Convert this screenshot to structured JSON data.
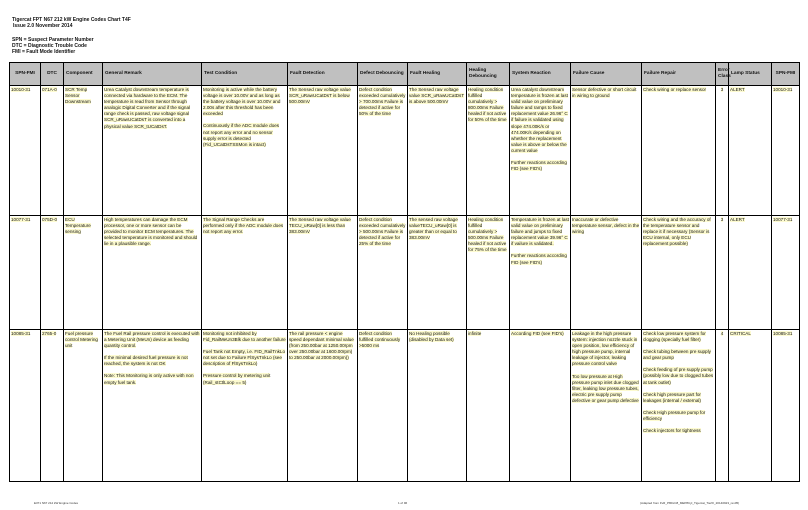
{
  "header": {
    "title": "Tigercat FPT N67 212 kW Engine Codes Chart T4F",
    "issue": "Issue 2.0 November 2014",
    "legend": [
      "SPN = Suspect Parameter Number",
      "DTC = Diagnostic Trouble Code",
      "FMI = Fault Mode Identifier"
    ]
  },
  "table": {
    "columns": [
      "SPN-FMI",
      "DTC",
      "Component",
      "General Remark",
      "Test Condition",
      "Fault Detection",
      "Defect Debouncing",
      "Fault Healing",
      "Healing Debouncing",
      "System Reaction",
      "Failure Cause",
      "Failure Repair",
      "Error Class",
      "Lamp Status",
      "SPN-FMI"
    ],
    "rows": [
      {
        "spn_fmi": "10010-31",
        "dtc": "071A-0",
        "component": "SCR Temp Sensor Downstream",
        "general_remark": [
          "Urea Catalyst downstream temperature is connected via  hardware to the ECM. The temperature is read from Sensor through analogic Digital Converter and if the signal range check is passed, raw voltage signal SCR_uRawUCatDsT is converted into a  physical value SCR_tUCatDsT."
        ],
        "test_condition": [
          "Monitoring is active while the battery voltage is over 10.00V and as long as the battery voltage is over 10.00V and 2.00s after this threshold has been exceeded",
          "Continuously  if the ADC module does not report any error and no sensor supply error is detected (Fid_UCatDsTSSMon is intact)"
        ],
        "fault_detection": [
          "The Sensed raw voltage value SCR_uRawUCatDsT is below 500.00mV"
        ],
        "defect_debouncing": [
          "Defect condition exceeded cumulatively > 700.00ms Failure is detected if active for 50% of the time"
        ],
        "fault_healing": [
          "The Sensed raw voltage value SCR_uRawUCatDsT is above 500.00mV"
        ],
        "healing_debouncing": [
          "Healing condition fulfilled cumulatively > 800.00ms Failure healed if not active for 50% of the time"
        ],
        "system_reaction": [
          "Urea catalyst downstream temperature is frozen at last valid value on preliminary failure and ramps to fixed replacement value 26.96° C if failure is validated using slope 474.00K/s or 474.00K/s depending on whether the replacement value is above or below the current value",
          "Further reactions according FID (see FID's)"
        ],
        "failure_cause": [
          "Sensor defective or short circuit in wiring to ground"
        ],
        "failure_repair": [
          "Check wiring or replace sensor"
        ],
        "error_class": "3",
        "lamp_status": "ALERT",
        "spn_fmi_2": "10010-31"
      },
      {
        "spn_fmi": "10077-31",
        "dtc": "075D-0",
        "component": "ECU Temperature sensing",
        "general_remark": [
          "High temperatures can damage the ECM processor, one or more sensor can be provided to monitor ECM temperatures. The selected temperature is monitored and should lie in a plausible range."
        ],
        "test_condition": [
          "The Signal Range Checks are performed only if the ADC module does not report any error."
        ],
        "fault_detection": [
          "The Sensed raw voltage value TECU_uRaw[0] is less than 383.00mV"
        ],
        "defect_debouncing": [
          "Defect condition exceeded cumulatively > 500.00ms Failure is detected if active for 25% of the time"
        ],
        "fault_healing": [
          "The sensed raw voltage valueTECU_uRaw[0] is greater than or equal to 383.00mV"
        ],
        "healing_debouncing": [
          "Healing condition fulfilled cumulatively > 500.00ms Failure healed if not active for 75% of the time"
        ],
        "system_reaction": [
          "Temperature is frozen at last valid value on preliminary failure and jumps to fixed replacement value 39.96° C if vailure is validated.",
          "Further reactions according FID (see FID's)"
        ],
        "failure_cause": [
          "Inaccurate or defective temperature sensor, defect in the wiring"
        ],
        "failure_repair": [
          "Check wiring and the accuracy of the temperature sensor and replace it if necessary  (Sensor is ECU internal, only ECU replacement possible)"
        ],
        "error_class": "3",
        "lamp_status": "ALERT",
        "spn_fmi_2": "10077-31"
      },
      {
        "spn_fmi": "10085-31",
        "dtc": "2765-0",
        "component": "Fuel pressure control Metering unit",
        "general_remark": [
          "The Fuel Rail pressure control is executed with a Metering Unit (MeUn) device as feeding quantity control.",
          "If the minimal desired fuel pressure is not reached, the system is not OK",
          "Note: This Monitoring is only active with non empty fuel tank."
        ],
        "test_condition": [
          "Monitoring not inhibited by Fid_RailMeUn3Blk due to another failure",
          "Fuel Tank not Empty, i.e. FID_RailTnkLo not set due to Failure FlSysTnkLo (see description of FlSysTnkLo)",
          "Pressure control by metering unit (Rail_stCtlLoop == 5)"
        ],
        "fault_detection": [
          "The rail pressure < engine speed dependant minimal value (from 250.00bar at 1250.00rpm over 250.00bar at 1600.00rpm) to 250.00bar at 2000.00rpm))"
        ],
        "defect_debouncing": [
          "Defect condition fulfilled continuously >5000 ms"
        ],
        "fault_healing": [
          "No Healing possible (disabled by Data set)"
        ],
        "healing_debouncing": [
          "infinite"
        ],
        "system_reaction": [
          "According FID (see FID's)"
        ],
        "failure_cause": [
          "Leakage in the high pressure system: injection nozzle stuck in open position, low efficiency of high pressure pump, internal leakage of injector, leaking pressure control valve",
          "Too low pressure at High pressure pump inlet due clogged filter, leaking low pressure tubes, electric pre supply pump defective or gear pump defective"
        ],
        "failure_repair": [
          "Check low pressure system for clogging (specially fuel filter)",
          "Check tubing between pre supply and gear pump",
          "Check feeding of pre supply pump (possibly low due to clogged tubes at tank outlet)",
          "Check high pressure part for leakages (internal / external)",
          "Check High pressure pump for efficiency",
          "Check injectors for tightness"
        ],
        "error_class": "4",
        "lamp_status": "CRITICAL",
        "spn_fmi_2": "10085-31"
      }
    ]
  },
  "footer": {
    "left": "E371 N67 212 kW Engine Codes",
    "center": "1 of 96",
    "right": "(Adapted from FvR_P8DxC8_MEP8Cyl_Tigercat_TierIII_20140923_rev05)"
  }
}
